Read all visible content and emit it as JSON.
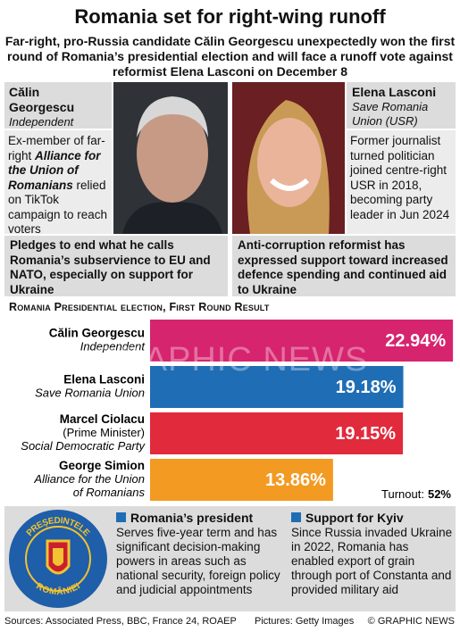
{
  "header": {
    "title": "Romania set for right-wing runoff",
    "subtitle": "Far-right, pro-Russia candidate Călin Georgescu unexpectedly won the first round of Romania’s presidential election and will face a runoff vote against reformist Elena Lasconi on December 8"
  },
  "candidates": [
    {
      "name": "Călin Georgescu",
      "party": "Independent",
      "description": [
        "Ex-member of far-right ",
        "Alliance for the Union of Romanians",
        " relied on TikTok campaign to reach voters"
      ],
      "pledge": "Pledges to end what he calls Romania’s subservience to EU and NATO, especially on support for Ukraine"
    },
    {
      "name": "Elena Lasconi",
      "party": "Save Romania Union (USR)",
      "description": [
        "Former journalist turned politician joined centre-right USR in 2018, becoming party leader in Jun 2024"
      ],
      "pledge": "Anti-corruption reformist has expressed support toward increased defence spending and continued aid to Ukraine"
    }
  ],
  "chart_data": {
    "type": "bar",
    "orientation": "horizontal",
    "title": "Romania Presidential election, First Round Result",
    "categories": [
      "Călin Georgescu",
      "Elena Lasconi",
      "Marcel Ciolacu",
      "George Simion"
    ],
    "category_notes": [
      [
        "Independent"
      ],
      [
        "Save Romania Union"
      ],
      [
        "(Prime Minister)",
        "Social Democratic Party"
      ],
      [
        "Alliance for the Union",
        "of Romanians"
      ]
    ],
    "values": [
      22.94,
      19.18,
      19.15,
      13.86
    ],
    "value_labels": [
      "22.94%",
      "19.18%",
      "19.15%",
      "13.86%"
    ],
    "colors": [
      "#d6246e",
      "#1f6db5",
      "#e12a3c",
      "#f39a22"
    ],
    "xlim": [
      0,
      23
    ],
    "turnout": {
      "label": "Turnout:",
      "value": "52%"
    }
  },
  "watermark": "GRAPHIC NEWS",
  "seal": {
    "top": "PREȘEDINTELE",
    "bottom": "ROMÂNIEI"
  },
  "info": [
    {
      "heading": "Romania’s president",
      "text": "Serves five-year term and has significant decision-making powers in areas such as national security, foreign policy and judicial appointments"
    },
    {
      "heading": "Support for Kyiv",
      "text": "Since Russia invaded Ukraine in 2022, Romania has enabled export of grain through port of Constanta and provided military aid"
    }
  ],
  "footer": {
    "sources": "Sources: Associated Press, BBC, France 24, ROAEP",
    "pictures": "Pictures: Getty Images",
    "credit": "© GRAPHIC NEWS"
  }
}
